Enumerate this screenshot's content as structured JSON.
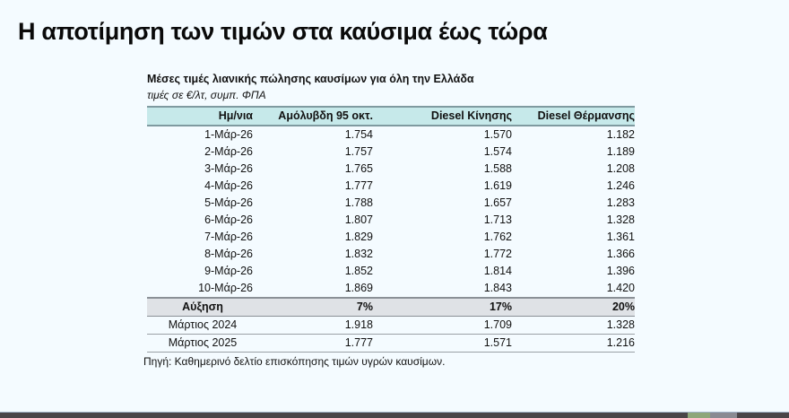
{
  "slide": {
    "title": "Η αποτίμηση των τιμών στα καύσιμα έως τώρα"
  },
  "table": {
    "title": "Μέσες τιμές λιανικής πώλησης καυσίμων για όλη την Ελλάδα",
    "subtitle": "τιμές σε €/λτ, συμπ. ΦΠΑ",
    "headers": [
      "Ημ/νια",
      "Αμόλυβδη 95 οκτ.",
      "Diesel Κίνησης",
      "Diesel Θέρμανσης"
    ],
    "rows": [
      {
        "date": "1-Μάρ-26",
        "unleaded95": "1.754",
        "diesel_motion": "1.570",
        "diesel_heating": "1.182"
      },
      {
        "date": "2-Μάρ-26",
        "unleaded95": "1.757",
        "diesel_motion": "1.574",
        "diesel_heating": "1.189"
      },
      {
        "date": "3-Μάρ-26",
        "unleaded95": "1.765",
        "diesel_motion": "1.588",
        "diesel_heating": "1.208"
      },
      {
        "date": "4-Μάρ-26",
        "unleaded95": "1.777",
        "diesel_motion": "1.619",
        "diesel_heating": "1.246"
      },
      {
        "date": "5-Μάρ-26",
        "unleaded95": "1.788",
        "diesel_motion": "1.657",
        "diesel_heating": "1.283"
      },
      {
        "date": "6-Μάρ-26",
        "unleaded95": "1.807",
        "diesel_motion": "1.713",
        "diesel_heating": "1.328"
      },
      {
        "date": "7-Μάρ-26",
        "unleaded95": "1.829",
        "diesel_motion": "1.762",
        "diesel_heating": "1.361"
      },
      {
        "date": "8-Μάρ-26",
        "unleaded95": "1.832",
        "diesel_motion": "1.772",
        "diesel_heating": "1.366"
      },
      {
        "date": "9-Μάρ-26",
        "unleaded95": "1.852",
        "diesel_motion": "1.814",
        "diesel_heating": "1.396"
      },
      {
        "date": "10-Μάρ-26",
        "unleaded95": "1.869",
        "diesel_motion": "1.843",
        "diesel_heating": "1.420"
      }
    ],
    "summary": {
      "label": "Αύξηση",
      "unleaded95": "7%",
      "diesel_motion": "17%",
      "diesel_heating": "20%"
    },
    "comparisons": [
      {
        "label": "Μάρτιος 2024",
        "unleaded95": "1.918",
        "diesel_motion": "1.709",
        "diesel_heating": "1.328"
      },
      {
        "label": "Μάρτιος 2025",
        "unleaded95": "1.777",
        "diesel_motion": "1.571",
        "diesel_heating": "1.216"
      }
    ],
    "source": "Πηγή: Καθημερινό δελτίο επισκόπησης τιμών υγρών καυσίμων."
  },
  "colors": {
    "background": "#f4fbff",
    "header_fill": "#c6e9ea",
    "summary_fill": "#dfe2e6",
    "taskbar": "#4a4548"
  }
}
